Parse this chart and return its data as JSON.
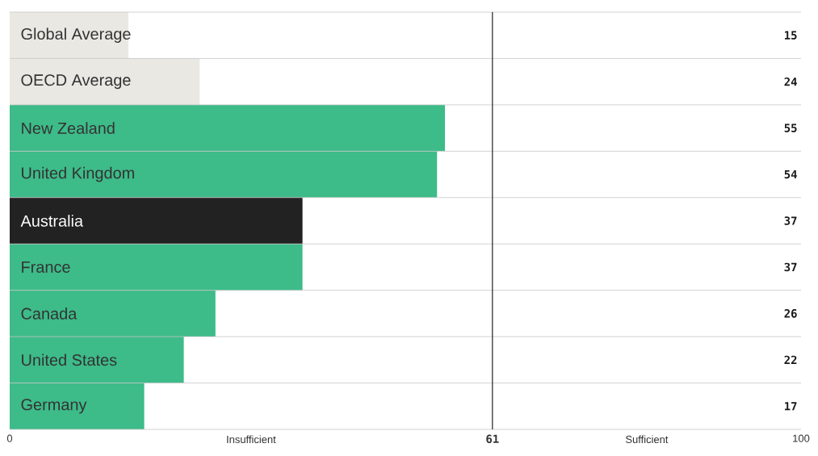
{
  "chart_data": {
    "type": "bar",
    "orientation": "horizontal",
    "categories": [
      "Global Average",
      "OECD Average",
      "New Zealand",
      "United Kingdom",
      "Australia",
      "France",
      "Canada",
      "United States",
      "Germany"
    ],
    "values": [
      15,
      24,
      55,
      54,
      37,
      37,
      26,
      22,
      17
    ],
    "colors": [
      "#eae8e3",
      "#eae8e3",
      "#3dbb89",
      "#3dbb89",
      "#222222",
      "#3dbb89",
      "#3dbb89",
      "#3dbb89",
      "#3dbb89"
    ],
    "xlim": [
      0,
      100
    ],
    "xticks": [
      0,
      100
    ],
    "ref_lines": [
      {
        "axis": "x",
        "value": 61,
        "label": "61",
        "color": "#222222"
      }
    ],
    "annotations": [
      "Insufficient",
      "Sufficient"
    ],
    "data_labels": true,
    "grid": "y"
  }
}
